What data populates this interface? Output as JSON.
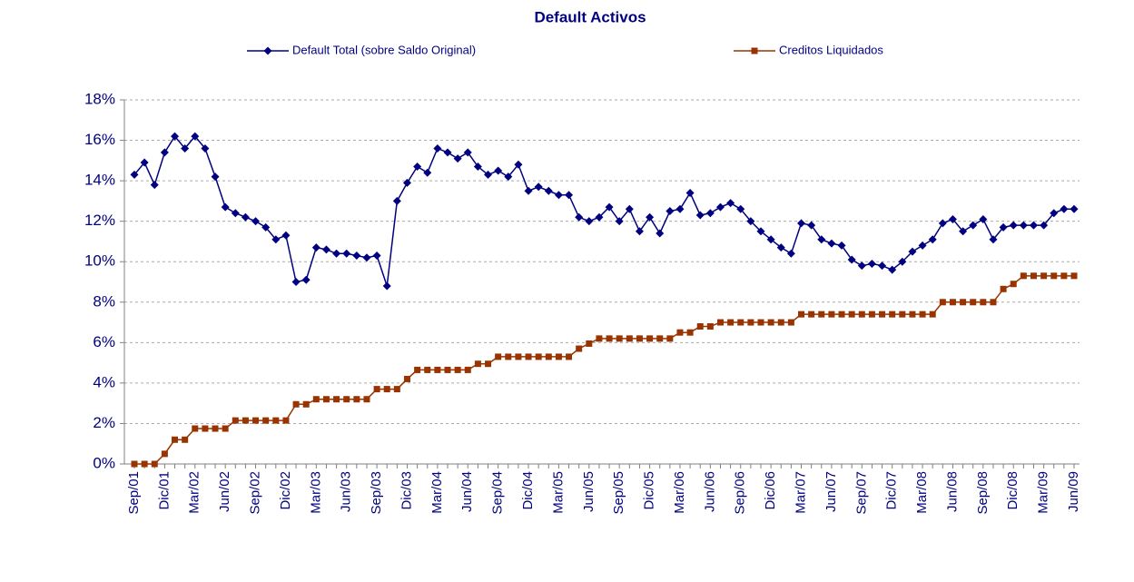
{
  "chart_data": {
    "type": "line",
    "title": "Default Activos",
    "categories": [
      "Sep/01",
      null,
      null,
      "Dic/01",
      null,
      null,
      "Mar/02",
      null,
      null,
      "Jun/02",
      null,
      null,
      "Sep/02",
      null,
      null,
      "Dic/02",
      null,
      null,
      "Mar/03",
      null,
      null,
      "Jun/03",
      null,
      null,
      "Sep/03",
      null,
      null,
      "Dic/03",
      null,
      null,
      "Mar/04",
      null,
      null,
      "Jun/04",
      null,
      null,
      "Sep/04",
      null,
      null,
      "Dic/04",
      null,
      null,
      "Mar/05",
      null,
      null,
      "Jun/05",
      null,
      null,
      "Sep/05",
      null,
      null,
      "Dic/05",
      null,
      null,
      "Mar/06",
      null,
      null,
      "Jun/06",
      null,
      null,
      "Sep/06",
      null,
      null,
      "Dic/06",
      null,
      null,
      "Mar/07",
      null,
      null,
      "Jun/07",
      null,
      null,
      "Sep/07",
      null,
      null,
      "Dic/07",
      null,
      null,
      "Mar/08",
      null,
      null,
      "Jun/08",
      null,
      null,
      "Sep/08",
      null,
      null,
      "Dic/08",
      null,
      null,
      "Mar/09",
      null,
      null,
      "Jun/09"
    ],
    "series": [
      {
        "name": "Default Total (sobre Saldo Original)",
        "color": "#000080",
        "marker": "diamond",
        "values": [
          14.3,
          14.9,
          13.8,
          15.4,
          16.2,
          15.6,
          16.2,
          15.6,
          14.2,
          12.7,
          12.4,
          12.2,
          12.0,
          11.7,
          11.1,
          11.3,
          9.0,
          9.1,
          10.7,
          10.6,
          10.4,
          10.4,
          10.3,
          10.2,
          10.3,
          8.8,
          13.0,
          13.9,
          14.7,
          14.4,
          15.6,
          15.4,
          15.1,
          15.4,
          14.7,
          14.3,
          14.5,
          14.2,
          14.8,
          13.5,
          13.7,
          13.5,
          13.3,
          13.3,
          12.2,
          12.0,
          12.2,
          12.7,
          12.0,
          12.6,
          11.5,
          12.2,
          11.4,
          12.5,
          12.6,
          13.4,
          12.3,
          12.4,
          12.7,
          12.9,
          12.6,
          12.0,
          11.5,
          11.1,
          10.7,
          10.4,
          11.9,
          11.8,
          11.1,
          10.9,
          10.8,
          10.1,
          9.8,
          9.9,
          9.8,
          9.6,
          10.0,
          10.5,
          10.8,
          11.1,
          11.9,
          12.1,
          11.5,
          11.8,
          12.1,
          11.1,
          11.7,
          11.8,
          11.8,
          11.8,
          11.8,
          12.4,
          12.6,
          12.6
        ]
      },
      {
        "name": "Creditos Liquidados",
        "color": "#993300",
        "marker": "square",
        "values": [
          0,
          0,
          0,
          0.5,
          1.2,
          1.2,
          1.75,
          1.75,
          1.75,
          1.75,
          2.15,
          2.15,
          2.15,
          2.15,
          2.15,
          2.15,
          2.95,
          2.95,
          3.2,
          3.2,
          3.2,
          3.2,
          3.2,
          3.2,
          3.7,
          3.7,
          3.7,
          4.2,
          4.65,
          4.65,
          4.65,
          4.65,
          4.65,
          4.65,
          4.95,
          4.95,
          5.3,
          5.3,
          5.3,
          5.3,
          5.3,
          5.3,
          5.3,
          5.3,
          5.7,
          5.95,
          6.2,
          6.2,
          6.2,
          6.2,
          6.2,
          6.2,
          6.2,
          6.2,
          6.5,
          6.5,
          6.8,
          6.8,
          7.0,
          7.0,
          7.0,
          7.0,
          7.0,
          7.0,
          7.0,
          7.0,
          7.4,
          7.4,
          7.4,
          7.4,
          7.4,
          7.4,
          7.4,
          7.4,
          7.4,
          7.4,
          7.4,
          7.4,
          7.4,
          7.4,
          8.0,
          8.0,
          8.0,
          8.0,
          8.0,
          8.0,
          8.65,
          8.9,
          9.3,
          9.3,
          9.3,
          9.3,
          9.3,
          9.3
        ]
      }
    ],
    "ylim": [
      0,
      18
    ],
    "yticks": [
      {
        "value": 0,
        "label": "0%"
      },
      {
        "value": 2,
        "label": "2%"
      },
      {
        "value": 4,
        "label": "4%"
      },
      {
        "value": 6,
        "label": "6%"
      },
      {
        "value": 8,
        "label": "8%"
      },
      {
        "value": 10,
        "label": "10%"
      },
      {
        "value": 12,
        "label": "12%"
      },
      {
        "value": 14,
        "label": "14%"
      },
      {
        "value": 16,
        "label": "16%"
      },
      {
        "value": 18,
        "label": "18%"
      }
    ],
    "grid": true,
    "legend": "top"
  }
}
